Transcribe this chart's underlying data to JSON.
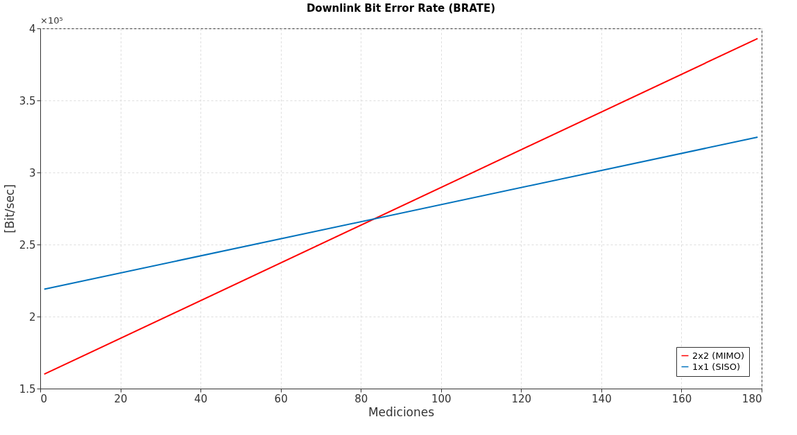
{
  "chart_data": {
    "type": "line",
    "title": "Downlink Bit Error Rate (BRATE)",
    "xlabel": "Mediciones",
    "ylabel": "[Bit/sec]",
    "annotations": [
      "×10⁵"
    ],
    "x": [
      1,
      179
    ],
    "series": [
      {
        "name": "2x2 (MIMO)",
        "color": "#ff0000",
        "values": [
          1.6,
          3.93
        ]
      },
      {
        "name": "1x1 (SISO)",
        "color": "#0072bd",
        "values": [
          2.19,
          3.245
        ]
      }
    ],
    "xlim": [
      0,
      180
    ],
    "xticks": [
      0,
      20,
      40,
      60,
      80,
      100,
      120,
      140,
      160,
      180
    ],
    "ylim": [
      1.5,
      4
    ],
    "yticks": [
      1.5,
      2,
      2.5,
      3,
      3.5,
      4
    ],
    "grid": true,
    "legend": "bottom right",
    "marker": "none",
    "line_style": "solid"
  }
}
